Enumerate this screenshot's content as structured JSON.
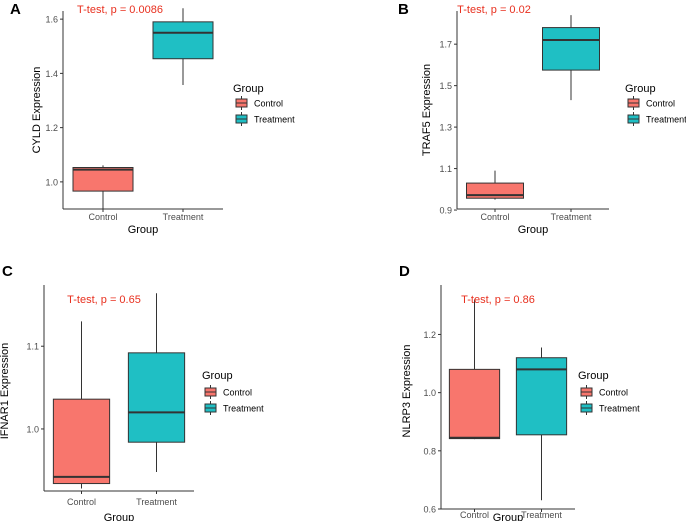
{
  "colors": {
    "control": "#F8766D",
    "treatment": "#1FBFC4",
    "annotation": "#E8301F",
    "axis": "#333333",
    "tick_text": "#4D4D4D"
  },
  "chart_data": [
    {
      "type": "box",
      "panel_label": "A",
      "annotation": "T-test, p = 0.0086",
      "xlabel": "Group",
      "ylabel": "CYLD Expression",
      "categories": [
        "Control",
        "Treatment"
      ],
      "ylim": [
        0.9,
        1.63
      ],
      "yticks": [
        1.0,
        1.2,
        1.4,
        1.6
      ],
      "ytick_labels": [
        "1.0",
        "1.2",
        "1.4",
        "1.6"
      ],
      "boxes": [
        {
          "group": "Control",
          "whisker_low": 0.89,
          "q1": 0.966,
          "median": 1.045,
          "q3": 1.053,
          "whisker_high": 1.061
        },
        {
          "group": "Treatment",
          "whisker_low": 1.357,
          "q1": 1.454,
          "median": 1.55,
          "q3": 1.59,
          "whisker_high": 1.64
        }
      ],
      "legend": {
        "title": "Group",
        "entries": [
          "Control",
          "Treatment"
        ]
      }
    },
    {
      "type": "box",
      "panel_label": "B",
      "annotation": "T-test, p = 0.02",
      "xlabel": "Group",
      "ylabel": "TRAF5 Expression",
      "categories": [
        "Control",
        "Treatment"
      ],
      "ylim": [
        0.905,
        1.86
      ],
      "yticks": [
        0.9,
        1.1,
        1.3,
        1.5,
        1.7
      ],
      "ytick_labels": [
        "0.9",
        "1.1",
        "1.3",
        "1.5",
        "1.7"
      ],
      "boxes": [
        {
          "group": "Control",
          "whisker_low": 0.95,
          "q1": 0.957,
          "median": 0.972,
          "q3": 1.03,
          "whisker_high": 1.09
        },
        {
          "group": "Treatment",
          "whisker_low": 1.43,
          "q1": 1.575,
          "median": 1.72,
          "q3": 1.78,
          "whisker_high": 1.84
        }
      ],
      "legend": {
        "title": "Group",
        "entries": [
          "Control",
          "Treatment"
        ]
      }
    },
    {
      "type": "box",
      "panel_label": "C",
      "annotation": "T-test, p = 0.65",
      "xlabel": "Group",
      "ylabel": "IFNAR1 Expression",
      "categories": [
        "Control",
        "Treatment"
      ],
      "ylim": [
        0.925,
        1.174
      ],
      "yticks": [
        1.0,
        1.1
      ],
      "ytick_labels": [
        "1.0",
        "1.1"
      ],
      "boxes": [
        {
          "group": "Control",
          "whisker_low": 0.928,
          "q1": 0.934,
          "median": 0.942,
          "q3": 1.036,
          "whisker_high": 1.13
        },
        {
          "group": "Treatment",
          "whisker_low": 0.948,
          "q1": 0.984,
          "median": 1.02,
          "q3": 1.092,
          "whisker_high": 1.164
        }
      ],
      "legend": {
        "title": "Group",
        "entries": [
          "Control",
          "Treatment"
        ]
      }
    },
    {
      "type": "box",
      "panel_label": "D",
      "annotation": "T-test, p = 0.86",
      "xlabel": "Group",
      "ylabel": "NLRP3 Expression",
      "categories": [
        "Control",
        "Treatment"
      ],
      "ylim": [
        0.6,
        1.37
      ],
      "yticks": [
        0.6,
        0.8,
        1.0,
        1.2
      ],
      "ytick_labels": [
        "0.6",
        "0.8",
        "1.0",
        "1.2"
      ],
      "boxes": [
        {
          "group": "Control",
          "whisker_low": 0.84,
          "q1": 0.842,
          "median": 0.845,
          "q3": 1.08,
          "whisker_high": 1.32
        },
        {
          "group": "Treatment",
          "whisker_low": 0.63,
          "q1": 0.855,
          "median": 1.08,
          "q3": 1.12,
          "whisker_high": 1.155
        }
      ],
      "legend": {
        "title": "Group",
        "entries": [
          "Control",
          "Treatment"
        ]
      }
    }
  ]
}
